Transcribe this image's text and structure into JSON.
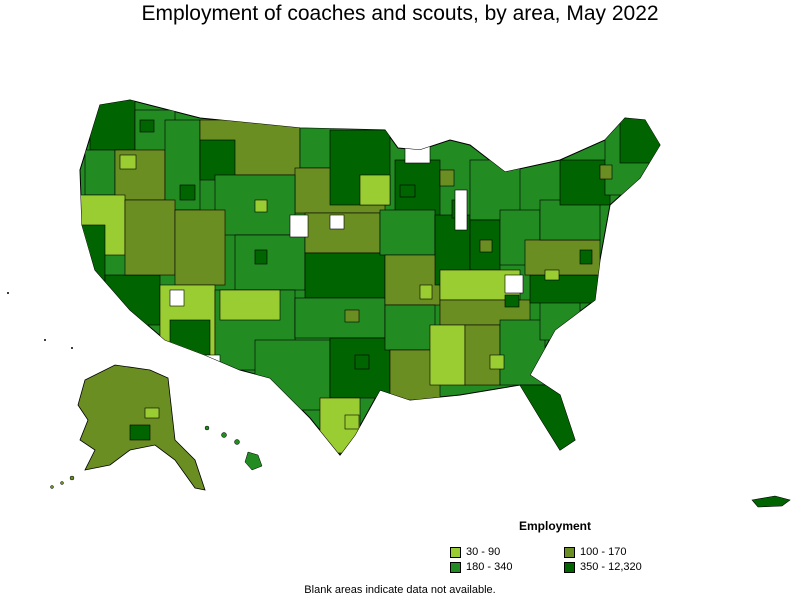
{
  "title": "Employment of coaches and scouts, by area, May 2022",
  "legend": {
    "title": "Employment",
    "items": [
      {
        "label": "30 - 90",
        "color": "#9acd32"
      },
      {
        "label": "100 - 170",
        "color": "#6b8e23"
      },
      {
        "label": "180 - 340",
        "color": "#228b22"
      },
      {
        "label": "350 - 12,320",
        "color": "#006400"
      }
    ]
  },
  "footnote": "Blank areas indicate data not available."
}
